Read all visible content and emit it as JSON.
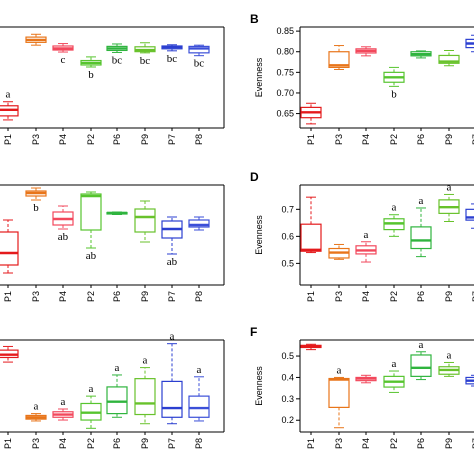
{
  "categories": [
    "P1",
    "P3",
    "P4",
    "P2",
    "P6",
    "P9",
    "P7",
    "P8"
  ],
  "colors": {
    "P1": "#e41a1c",
    "P3": "#e8751a",
    "P4": "#f2485c",
    "P2": "#56c42e",
    "P6": "#2fb43e",
    "P9": "#68c22b",
    "P7": "#2b3fd0",
    "P8": "#3b4fd8"
  },
  "chart_data": [
    {
      "type": "box",
      "panel": "A",
      "letter_shown": "",
      "ylabel": "",
      "yticks": [],
      "ylim": [
        0.6,
        0.85
      ],
      "categories": [
        "P1",
        "P3",
        "P4",
        "P2",
        "P6",
        "P9",
        "P7",
        "P8"
      ],
      "boxes": [
        {
          "min": 0.62,
          "q1": 0.63,
          "median": 0.645,
          "q3": 0.655,
          "max": 0.665
        },
        {
          "min": 0.805,
          "q1": 0.812,
          "median": 0.818,
          "q3": 0.825,
          "max": 0.832
        },
        {
          "min": 0.788,
          "q1": 0.793,
          "median": 0.797,
          "q3": 0.803,
          "max": 0.809
        },
        {
          "min": 0.751,
          "q1": 0.756,
          "median": 0.761,
          "q3": 0.767,
          "max": 0.776
        },
        {
          "min": 0.787,
          "q1": 0.792,
          "median": 0.797,
          "q3": 0.802,
          "max": 0.808
        },
        {
          "min": 0.786,
          "q1": 0.789,
          "median": 0.793,
          "q3": 0.801,
          "max": 0.811
        },
        {
          "min": 0.791,
          "q1": 0.796,
          "median": 0.8,
          "q3": 0.803,
          "max": 0.806
        },
        {
          "min": 0.779,
          "q1": 0.786,
          "median": 0.797,
          "q3": 0.802,
          "max": 0.805
        }
      ],
      "labels": [
        "a",
        "",
        "c",
        "b",
        "bc",
        "bc",
        "bc",
        "bc"
      ]
    },
    {
      "type": "box",
      "panel": "B",
      "letter_shown": "B",
      "ylabel": "Evenness",
      "yticks": [
        0.65,
        0.7,
        0.75,
        0.8,
        0.85
      ],
      "ytick_labels": [
        "0.65",
        "0.70",
        "0.75",
        "0.80",
        "0.85"
      ],
      "ylim": [
        0.615,
        0.86
      ],
      "categories": [
        "P1",
        "P3",
        "P4",
        "P2",
        "P6",
        "P9",
        "P7",
        "P8"
      ],
      "boxes": [
        {
          "min": 0.625,
          "q1": 0.64,
          "median": 0.653,
          "q3": 0.665,
          "max": 0.675
        },
        {
          "min": 0.757,
          "q1": 0.762,
          "median": 0.767,
          "q3": 0.8,
          "max": 0.815
        },
        {
          "min": 0.79,
          "q1": 0.797,
          "median": 0.802,
          "q3": 0.807,
          "max": 0.812
        },
        {
          "min": 0.716,
          "q1": 0.726,
          "median": 0.738,
          "q3": 0.75,
          "max": 0.762
        },
        {
          "min": 0.785,
          "q1": 0.79,
          "median": 0.794,
          "q3": 0.8,
          "max": 0.802
        },
        {
          "min": 0.766,
          "q1": 0.772,
          "median": 0.776,
          "q3": 0.791,
          "max": 0.803
        },
        {
          "min": 0.8,
          "q1": 0.81,
          "median": 0.82,
          "q3": 0.83,
          "max": 0.84
        },
        {
          "min": 0.81,
          "q1": 0.818,
          "median": 0.824,
          "q3": 0.83,
          "max": 0.836
        }
      ],
      "labels": [
        "",
        "",
        "",
        "b",
        "",
        "",
        "",
        ""
      ]
    },
    {
      "type": "box",
      "panel": "C",
      "letter_shown": "",
      "ylabel": "",
      "yticks": [],
      "ylim": [
        0,
        10
      ],
      "categories": [
        "P1",
        "P3",
        "P4",
        "P2",
        "P6",
        "P9",
        "P7",
        "P8"
      ],
      "boxes": [
        {
          "min": 1.2,
          "q1": 2.0,
          "median": 3.2,
          "q3": 5.3,
          "max": 6.5
        },
        {
          "min": 8.5,
          "q1": 8.9,
          "median": 9.2,
          "q3": 9.4,
          "max": 9.7
        },
        {
          "min": 5.6,
          "q1": 6.0,
          "median": 6.6,
          "q3": 7.3,
          "max": 7.9
        },
        {
          "min": 3.7,
          "q1": 5.5,
          "median": 8.9,
          "q3": 9.1,
          "max": 9.3
        },
        {
          "min": 7.05,
          "q1": 7.1,
          "median": 7.2,
          "q3": 7.25,
          "max": 7.3
        },
        {
          "min": 4.3,
          "q1": 5.3,
          "median": 6.8,
          "q3": 7.6,
          "max": 8.4
        },
        {
          "min": 3.1,
          "q1": 4.7,
          "median": 5.6,
          "q3": 6.4,
          "max": 6.8
        },
        {
          "min": 5.5,
          "q1": 5.8,
          "median": 6.0,
          "q3": 6.5,
          "max": 6.8
        }
      ],
      "labels": [
        "",
        "b",
        "ab",
        "ab",
        "",
        "",
        "ab",
        ""
      ]
    },
    {
      "type": "box",
      "panel": "D",
      "letter_shown": "D",
      "ylabel": "Evenness",
      "yticks": [
        0.5,
        0.6,
        0.7
      ],
      "ytick_labels": [
        "0.5",
        "0.6",
        "0.7"
      ],
      "ylim": [
        0.42,
        0.79
      ],
      "categories": [
        "P1",
        "P3",
        "P4",
        "P2",
        "P6",
        "P9",
        "P7",
        "P8"
      ],
      "boxes": [
        {
          "min": 0.54,
          "q1": 0.545,
          "median": 0.55,
          "q3": 0.645,
          "max": 0.745
        },
        {
          "min": 0.515,
          "q1": 0.52,
          "median": 0.54,
          "q3": 0.555,
          "max": 0.57
        },
        {
          "min": 0.505,
          "q1": 0.535,
          "median": 0.548,
          "q3": 0.565,
          "max": 0.58
        },
        {
          "min": 0.6,
          "q1": 0.625,
          "median": 0.648,
          "q3": 0.665,
          "max": 0.68
        },
        {
          "min": 0.525,
          "q1": 0.555,
          "median": 0.585,
          "q3": 0.635,
          "max": 0.705
        },
        {
          "min": 0.655,
          "q1": 0.685,
          "median": 0.708,
          "q3": 0.735,
          "max": 0.755
        },
        {
          "min": 0.63,
          "q1": 0.66,
          "median": 0.67,
          "q3": 0.7,
          "max": 0.72
        },
        {
          "min": 0.63,
          "q1": 0.655,
          "median": 0.67,
          "q3": 0.69,
          "max": 0.71
        }
      ],
      "labels": [
        "",
        "",
        "a",
        "a",
        "a",
        "a",
        "",
        ""
      ]
    },
    {
      "type": "box",
      "panel": "E",
      "letter_shown": "",
      "ylabel": "",
      "yticks": [],
      "ylim": [
        0,
        10
      ],
      "categories": [
        "P1",
        "P3",
        "P4",
        "P2",
        "P6",
        "P9",
        "P7",
        "P8"
      ],
      "boxes": [
        {
          "min": 7.6,
          "q1": 8.1,
          "median": 8.4,
          "q3": 8.9,
          "max": 9.3
        },
        {
          "min": 1.2,
          "q1": 1.4,
          "median": 1.6,
          "q3": 1.8,
          "max": 2.0
        },
        {
          "min": 1.3,
          "q1": 1.6,
          "median": 1.9,
          "q3": 2.2,
          "max": 2.5
        },
        {
          "min": 0.4,
          "q1": 1.3,
          "median": 2.1,
          "q3": 3.1,
          "max": 3.9
        },
        {
          "min": 1.6,
          "q1": 2.0,
          "median": 3.3,
          "q3": 4.9,
          "max": 6.2
        },
        {
          "min": 0.9,
          "q1": 1.9,
          "median": 3.1,
          "q3": 5.8,
          "max": 7.0
        },
        {
          "min": 0.9,
          "q1": 1.6,
          "median": 2.6,
          "q3": 5.5,
          "max": 9.6
        },
        {
          "min": 1.2,
          "q1": 1.6,
          "median": 2.6,
          "q3": 3.9,
          "max": 6.0
        }
      ],
      "labels": [
        "",
        "a",
        "a",
        "a",
        "a",
        "a",
        "a",
        "a"
      ]
    },
    {
      "type": "box",
      "panel": "F",
      "letter_shown": "F",
      "ylabel": "Evenness",
      "yticks": [
        0.2,
        0.3,
        0.4,
        0.5
      ],
      "ytick_labels": [
        "0.2",
        "0.3",
        "0.4",
        "0.5"
      ],
      "ylim": [
        0.145,
        0.575
      ],
      "categories": [
        "P1",
        "P3",
        "P4",
        "P2",
        "P6",
        "P9",
        "P7",
        "P8"
      ],
      "boxes": [
        {
          "min": 0.53,
          "q1": 0.54,
          "median": 0.546,
          "q3": 0.55,
          "max": 0.555
        },
        {
          "min": 0.165,
          "q1": 0.26,
          "median": 0.39,
          "q3": 0.395,
          "max": 0.4
        },
        {
          "min": 0.375,
          "q1": 0.385,
          "median": 0.395,
          "q3": 0.4,
          "max": 0.41
        },
        {
          "min": 0.33,
          "q1": 0.355,
          "median": 0.38,
          "q3": 0.405,
          "max": 0.43
        },
        {
          "min": 0.39,
          "q1": 0.405,
          "median": 0.445,
          "q3": 0.505,
          "max": 0.52
        },
        {
          "min": 0.405,
          "q1": 0.415,
          "median": 0.435,
          "q3": 0.45,
          "max": 0.47
        },
        {
          "min": 0.36,
          "q1": 0.37,
          "median": 0.385,
          "q3": 0.4,
          "max": 0.41
        },
        {
          "min": 0.36,
          "q1": 0.37,
          "median": 0.385,
          "q3": 0.4,
          "max": 0.41
        }
      ],
      "labels": [
        "",
        "a",
        "",
        "a",
        "a",
        "a",
        "",
        ""
      ]
    }
  ]
}
